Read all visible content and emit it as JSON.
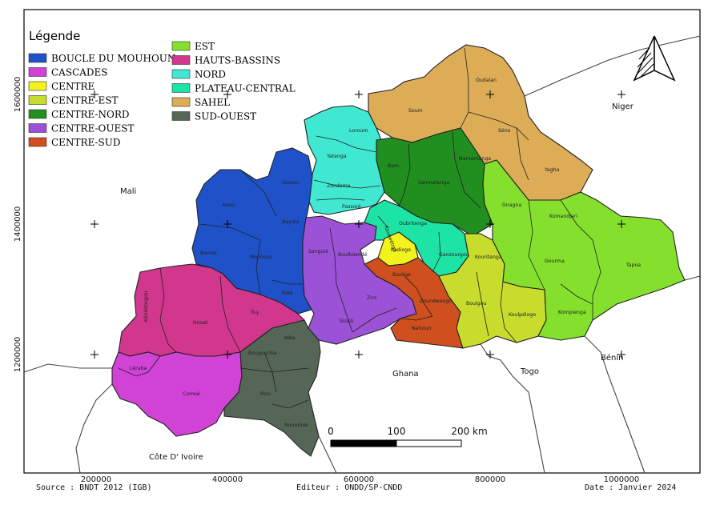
{
  "legend": {
    "title": "Légende",
    "items": [
      {
        "label": "BOUCLE DU MOUHOUN",
        "color": "#1f52c8"
      },
      {
        "label": "CASCADES",
        "color": "#d142d6"
      },
      {
        "label": "CENTRE",
        "color": "#f2f21d"
      },
      {
        "label": "CENTRE-EST",
        "color": "#c7dc2c"
      },
      {
        "label": "CENTRE-NORD",
        "color": "#218f1f"
      },
      {
        "label": "CENTRE-OUEST",
        "color": "#9b52d6"
      },
      {
        "label": "CENTRE-SUD",
        "color": "#d04f1e"
      },
      {
        "label": "EST",
        "color": "#84e02d"
      },
      {
        "label": "HAUTS-BASSINS",
        "color": "#d1378c"
      },
      {
        "label": "NORD",
        "color": "#40e8d1"
      },
      {
        "label": "PLATEAU-CENTRAL",
        "color": "#1de3a4"
      },
      {
        "label": "SAHEL",
        "color": "#dcac57"
      },
      {
        "label": "SUD-OUEST",
        "color": "#556657"
      }
    ]
  },
  "provinces": {
    "oudalan": "Oudalan",
    "soum": "Soum",
    "seno": "Séno",
    "yagha": "Yagha",
    "loroum": "Loroum",
    "yatenga": "Yatenga",
    "zondoma": "Zondoma",
    "passore": "Passoré",
    "bam": "Bam",
    "sanmatenga": "Sanmatenga",
    "namentenga": "Namentenga",
    "sourou": "Sourou",
    "kossi": "Kossi",
    "nayala": "Nayala",
    "banwa": "Banwa",
    "mouhoun": "Mouhoun",
    "bale": "Balé",
    "sanguie": "Sanguié",
    "boulkiemde": "Boulkiemdé",
    "ziro": "Ziro",
    "sissili": "Sissili",
    "kourweogo": "Kourwéogo",
    "oubritenga": "Oubritenga",
    "kadiogo": "Kadiogo",
    "ganzourgou": "Ganzourgou",
    "bazega": "Bazèga",
    "zoundweogo": "Zoundwéogo",
    "nahouri": "Nahouri",
    "kouritenga": "Kouritenga",
    "boulgou": "Boulgou",
    "koulpelogo": "Koulpélogo",
    "gnagna": "Gnagna",
    "komandjari": "Komandjari",
    "gourma": "Gourma",
    "tapoa": "Tapoa",
    "kompienga": "Kompienga",
    "kenedougou": "Kénédougou",
    "houet": "Houet",
    "tuy": "Tuy",
    "ioba": "Ioba",
    "bougouriba": "Bougouriba",
    "leraba": "Léraba",
    "comoe": "Comoé",
    "poni": "Poni",
    "noumbiel": "Noumbiel"
  },
  "countries": {
    "mali": "Mali",
    "niger": "Niger",
    "ghana": "Ghana",
    "togo": "Togo",
    "benin": "Bénin",
    "cote_divoire": "Côte D' Ivoire"
  },
  "axis": {
    "y_labels": [
      "1600000",
      "1400000",
      "1200000"
    ],
    "x_labels": [
      "200000",
      "400000",
      "600000",
      "800000",
      "1000000"
    ]
  },
  "scale_bar": {
    "labels": [
      "0",
      "100",
      "200 km"
    ]
  },
  "footer": {
    "source": "Source : BNDT 2012 (IGB)",
    "editor": "Editeur : ONDD/SP-CNDD",
    "date": "Date : Janvier 2024"
  },
  "north_arrow": "north-arrow-icon"
}
